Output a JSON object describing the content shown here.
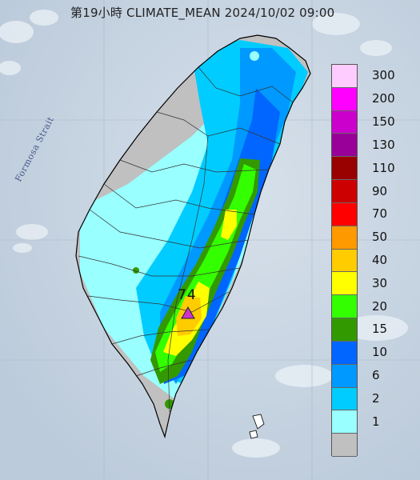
{
  "header": {
    "title": "第19小時 CLIMATE_MEAN 2024/10/02 09:00"
  },
  "map": {
    "sea_label": "Formosa Strait",
    "max_value_label": "74",
    "max_marker_icon": "triangle-marker-icon"
  },
  "legend": {
    "items": [
      {
        "label": "300",
        "color": "#ffccff"
      },
      {
        "label": "200",
        "color": "#ff00ff"
      },
      {
        "label": "150",
        "color": "#cc00cc"
      },
      {
        "label": "130",
        "color": "#990099"
      },
      {
        "label": "110",
        "color": "#990000"
      },
      {
        "label": "90",
        "color": "#cc0000"
      },
      {
        "label": "70",
        "color": "#ff0000"
      },
      {
        "label": "50",
        "color": "#ff9900"
      },
      {
        "label": "40",
        "color": "#ffcc00"
      },
      {
        "label": "30",
        "color": "#ffff00"
      },
      {
        "label": "20",
        "color": "#33ff00"
      },
      {
        "label": "15",
        "color": "#339900"
      },
      {
        "label": "10",
        "color": "#0066ff"
      },
      {
        "label": "6",
        "color": "#0099ff"
      },
      {
        "label": "2",
        "color": "#00ccff"
      },
      {
        "label": "1",
        "color": "#99ffff"
      },
      {
        "label": "",
        "color": "#c0c0c0"
      }
    ]
  }
}
